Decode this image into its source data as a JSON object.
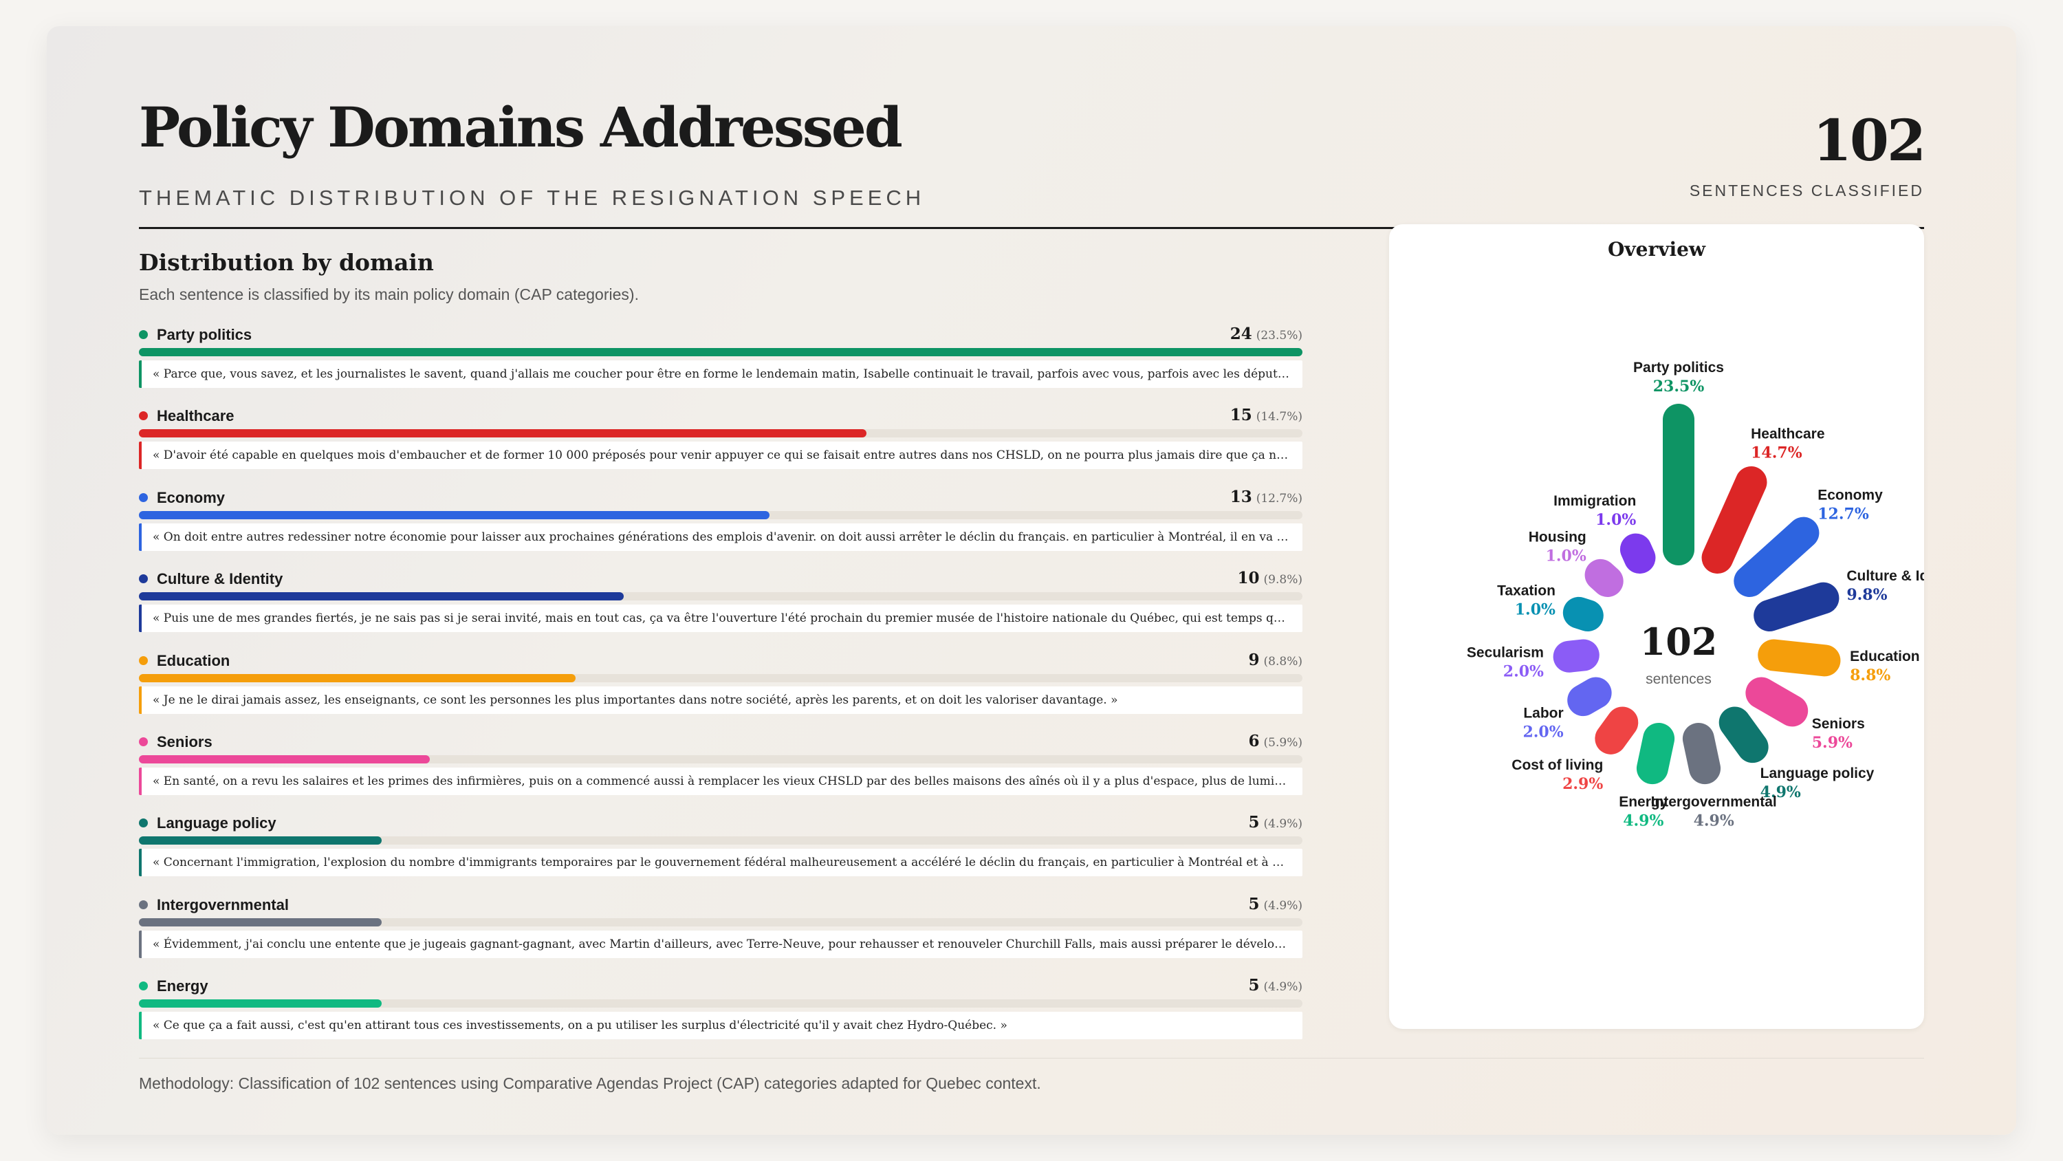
{
  "header": {
    "title": "Policy Domains Addressed",
    "subtitle": "THEMATIC DISTRIBUTION OF THE RESIGNATION SPEECH",
    "kpi_value": "102",
    "kpi_label": "SENTENCES CLASSIFIED"
  },
  "section": {
    "title": "Distribution by domain",
    "description": "Each sentence is classified by its main policy domain (CAP categories)."
  },
  "panel": {
    "title": "Overview",
    "center_value": "102",
    "center_label": "sentences"
  },
  "footer": {
    "methodology": "Methodology: Classification of 102 sentences using Comparative Agendas Project (CAP) categories adapted for Quebec context."
  },
  "chart_data": {
    "type": "bar",
    "total": 102,
    "categories": [
      "Party politics",
      "Healthcare",
      "Economy",
      "Culture & Identity",
      "Education",
      "Seniors",
      "Language policy",
      "Intergovernmental",
      "Energy",
      "Cost of living",
      "Labor",
      "Secularism",
      "Taxation",
      "Housing",
      "Immigration"
    ],
    "values": [
      24,
      15,
      13,
      10,
      9,
      6,
      5,
      5,
      5,
      3,
      2,
      2,
      1,
      1,
      1
    ],
    "percents": [
      "23.5%",
      "14.7%",
      "12.7%",
      "9.8%",
      "8.8%",
      "5.9%",
      "4.9%",
      "4.9%",
      "4.9%",
      "2.9%",
      "2.0%",
      "2.0%",
      "1.0%",
      "1.0%",
      "1.0%"
    ],
    "percent_labels": [
      "(23.5%)",
      "(14.7%)",
      "(12.7%)",
      "(9.8%)",
      "(8.8%)",
      "(5.9%)",
      "(4.9%)",
      "(4.9%)",
      "(4.9%)"
    ],
    "colors": [
      "#0e9464",
      "#dc2626",
      "#2d64e0",
      "#1e3a9a",
      "#f59e0b",
      "#ec4899",
      "#0f766e",
      "#6b7280",
      "#10b981",
      "#ef4444",
      "#6366f1",
      "#8b5cf6",
      "#0891b2",
      "#c06ee0",
      "#7c3aed"
    ],
    "quotes": [
      "« Parce que, vous savez, et les journalistes le savent, quand j'allais me coucher pour être en forme le lendemain matin, Isabelle continuait le travail, parfois avec vous, parfois avec les députés, les...",
      "« D'avoir été capable en quelques mois d'embaucher et de former 10 000 préposés pour venir appuyer ce qui se faisait entre autres dans nos CHSLD, on ne pourra plus jamais dire que ça ne va pas. »",
      "« On doit entre autres redessiner notre économie pour laisser aux prochaines générations des emplois d'avenir. on doit aussi arrêter le déclin du français. en particulier à Montréal, il en va de l'avenir de...",
      "« Puis une de mes grandes fiertés, je ne sais pas si je serai invité, mais en tout cas, ça va être l'ouverture l'été prochain du premier musée de l'histoire nationale du Québec, qui est temps qu'on célèbre au...",
      "« Je ne le dirai jamais assez, les enseignants, ce sont les personnes les plus importantes dans notre société, après les parents, et on doit les valoriser davantage. »",
      "« En santé, on a revu les salaires et les primes des infirmières, puis on a commencé aussi à remplacer les vieux CHSLD par des belles maisons des aînés où il y a plus d'espace, plus de lumière. »",
      "« Concernant l'immigration, l'explosion du nombre d'immigrants temporaires par le gouvernement fédéral malheureusement a accéléré le déclin du français, en particulier à Montréal et à Laval. »",
      "« Évidemment, j'ai conclu une entente que je jugeais gagnant-gagnant, avec Martin d'ailleurs, avec Terre-Neuve, pour rehausser et renouveler Churchill Falls, mais aussi préparer le développement d'u...",
      "« Ce que ça a fait aussi, c'est qu'en attirant tous ces investissements, on a pu utiliser les surplus d'électricité qu'il y avait chez Hydro-Québec. »"
    ]
  }
}
